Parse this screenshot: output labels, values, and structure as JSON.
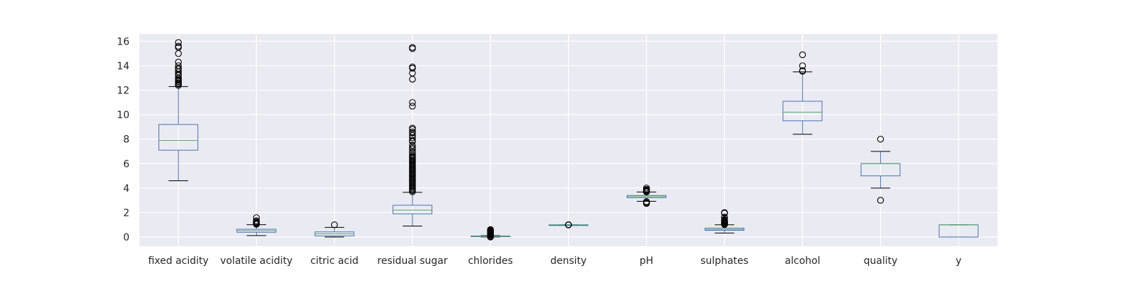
{
  "chart_data": {
    "type": "box",
    "title": "",
    "xlabel": "",
    "ylabel": "",
    "ylim": [
      -0.75,
      16.6
    ],
    "yticks": [
      0,
      2,
      4,
      6,
      8,
      10,
      12,
      14,
      16
    ],
    "grid": true,
    "colors": {
      "background": "#eaeaf2",
      "grid": "#ffffff",
      "box": "#4c72b0",
      "median": "#55a868",
      "whisker": "#4c72b0",
      "cap": "#000000",
      "flier": "#000000"
    },
    "series": [
      {
        "label": "fixed acidity",
        "whisker_low": 4.6,
        "q1": 7.1,
        "median": 7.9,
        "q3": 9.2,
        "whisker_high": 12.3,
        "outliers": [
          12.4,
          12.5,
          12.6,
          12.7,
          12.8,
          12.9,
          13.0,
          13.2,
          13.3,
          13.5,
          13.7,
          13.8,
          14.0,
          14.3,
          15.0,
          15.5,
          15.6,
          15.9
        ]
      },
      {
        "label": "volatile acidity",
        "whisker_low": 0.12,
        "q1": 0.39,
        "median": 0.52,
        "q3": 0.64,
        "whisker_high": 1.01,
        "outliers": [
          1.04,
          1.07,
          1.09,
          1.13,
          1.18,
          1.24,
          1.33,
          1.58
        ]
      },
      {
        "label": "citric acid",
        "whisker_low": 0.0,
        "q1": 0.09,
        "median": 0.26,
        "q3": 0.42,
        "whisker_high": 0.79,
        "outliers": [
          1.0
        ]
      },
      {
        "label": "residual sugar",
        "whisker_low": 0.9,
        "q1": 1.9,
        "median": 2.2,
        "q3": 2.6,
        "whisker_high": 3.65,
        "outliers": [
          3.7,
          3.8,
          3.9,
          4.0,
          4.1,
          4.2,
          4.3,
          4.4,
          4.5,
          4.6,
          4.7,
          4.8,
          4.9,
          5.0,
          5.1,
          5.2,
          5.3,
          5.4,
          5.5,
          5.6,
          5.7,
          5.8,
          5.9,
          6.0,
          6.1,
          6.2,
          6.3,
          6.4,
          6.5,
          6.6,
          6.7,
          6.9,
          7.0,
          7.2,
          7.3,
          7.5,
          7.8,
          7.9,
          8.1,
          8.3,
          8.5,
          8.6,
          8.8,
          8.9,
          10.7,
          11.0,
          12.9,
          13.4,
          13.8,
          13.9,
          15.4,
          15.5
        ]
      },
      {
        "label": "chlorides",
        "whisker_low": 0.012,
        "q1": 0.07,
        "median": 0.079,
        "q3": 0.09,
        "whisker_high": 0.119,
        "outliers": [
          0.0,
          0.02,
          0.04,
          0.12,
          0.14,
          0.16,
          0.18,
          0.2,
          0.22,
          0.24,
          0.26,
          0.28,
          0.3,
          0.32,
          0.34,
          0.36,
          0.38,
          0.4,
          0.42,
          0.46,
          0.5,
          0.55,
          0.61
        ]
      },
      {
        "label": "density",
        "whisker_low": 0.992,
        "q1": 0.9956,
        "median": 0.9968,
        "q3": 0.9978,
        "whisker_high": 1.001,
        "outliers": [
          0.99,
          1.002,
          1.003,
          1.004
        ]
      },
      {
        "label": "pH",
        "whisker_low": 2.92,
        "q1": 3.21,
        "median": 3.31,
        "q3": 3.4,
        "whisker_high": 3.68,
        "outliers": [
          2.74,
          2.78,
          2.86,
          2.88,
          2.89,
          3.69,
          3.71,
          3.72,
          3.74,
          3.78,
          3.85,
          3.9,
          4.01
        ]
      },
      {
        "label": "sulphates",
        "whisker_low": 0.33,
        "q1": 0.55,
        "median": 0.62,
        "q3": 0.73,
        "whisker_high": 1.0,
        "outliers": [
          1.02,
          1.05,
          1.08,
          1.1,
          1.13,
          1.17,
          1.2,
          1.26,
          1.31,
          1.36,
          1.42,
          1.59,
          1.62,
          1.95,
          1.98,
          2.0
        ]
      },
      {
        "label": "alcohol",
        "whisker_low": 8.4,
        "q1": 9.5,
        "median": 10.2,
        "q3": 11.1,
        "whisker_high": 13.5,
        "outliers": [
          13.55,
          13.6,
          14.0,
          14.9
        ]
      },
      {
        "label": "quality",
        "whisker_low": 4.0,
        "q1": 5.0,
        "median": 6.0,
        "q3": 6.0,
        "whisker_high": 7.0,
        "outliers": [
          3.0,
          8.0
        ]
      },
      {
        "label": "y",
        "whisker_low": 0.0,
        "q1": 0.0,
        "median": 1.0,
        "q3": 1.0,
        "whisker_high": 1.0,
        "outliers": []
      }
    ]
  }
}
